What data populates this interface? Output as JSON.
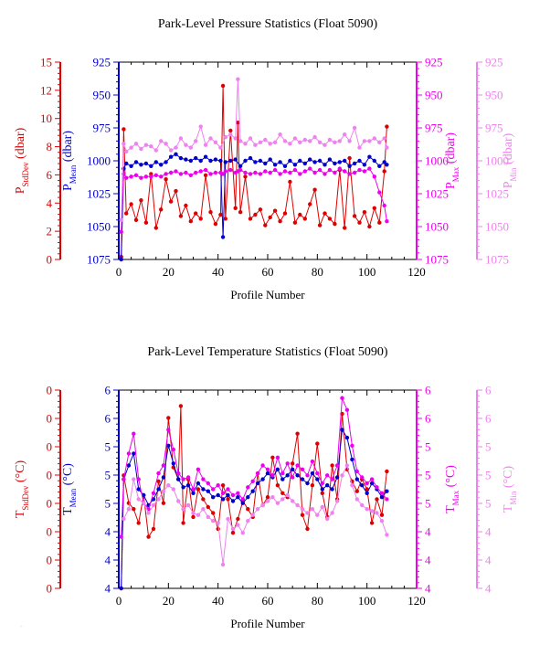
{
  "footer_text": "...",
  "chart_data": [
    {
      "type": "line",
      "title": "Park-Level Pressure Statistics (Float 5090)",
      "xlabel": "Profile Number",
      "xlim": [
        0,
        120
      ],
      "xticks": [
        0,
        20,
        40,
        60,
        80,
        100,
        120
      ],
      "axes": [
        {
          "id": "std",
          "label_main": "P",
          "label_sub": "StdDev",
          "label_unit": " (dbar)",
          "color": "#dd0000",
          "ticks": [
            "15",
            "12",
            "10",
            "8",
            "6",
            "4",
            "2",
            "0"
          ],
          "lim": [
            0,
            15
          ]
        },
        {
          "id": "mean",
          "label_main": "P",
          "label_sub": "Mean",
          "label_unit": " (dbar)",
          "color": "#0000cc",
          "ticks": [
            "925",
            "950",
            "975",
            "1000",
            "1025",
            "1050",
            "1075"
          ],
          "lim": [
            925,
            1075
          ],
          "inverted": true
        },
        {
          "id": "max",
          "label_main": "P",
          "label_sub": "Max",
          "label_unit": " (dbar)",
          "color": "#ee00ee",
          "ticks": [
            "925",
            "950",
            "975",
            "1000",
            "1025",
            "1050",
            "1075"
          ],
          "lim": [
            925,
            1075
          ],
          "inverted": true
        },
        {
          "id": "min",
          "label_main": "P",
          "label_sub": "Min",
          "label_unit": " (dbar)",
          "color": "#ee82ee",
          "ticks": [
            "925",
            "950",
            "975",
            "1000",
            "1025",
            "1050",
            "1075"
          ],
          "lim": [
            925,
            1075
          ],
          "inverted": true
        }
      ],
      "series": [
        {
          "axis": "std",
          "color": "#dd0000",
          "x": [
            1,
            2,
            3,
            5,
            7,
            9,
            11,
            13,
            15,
            17,
            19,
            21,
            23,
            25,
            27,
            29,
            31,
            33,
            35,
            37,
            39,
            41,
            42,
            43,
            45,
            47,
            48,
            49,
            51,
            53,
            55,
            57,
            59,
            61,
            63,
            65,
            67,
            69,
            71,
            73,
            75,
            77,
            79,
            81,
            83,
            85,
            87,
            89,
            91,
            93,
            95,
            97,
            99,
            101,
            103,
            105,
            107,
            108
          ],
          "y": [
            0.2,
            9.9,
            3.5,
            4.2,
            3.0,
            4.5,
            2.8,
            6.5,
            2.4,
            3.8,
            6.1,
            4.4,
            5.2,
            3.3,
            4.1,
            2.9,
            3.5,
            3.1,
            6.4,
            3.6,
            2.7,
            3.4,
            13.2,
            3.1,
            9.8,
            3.9,
            10.4,
            3.6,
            6.3,
            3.1,
            3.4,
            3.8,
            2.6,
            3.2,
            3.7,
            2.9,
            3.5,
            5.9,
            2.8,
            3.4,
            3.1,
            4.2,
            5.3,
            2.6,
            3.5,
            3.1,
            2.7,
            6.8,
            2.4,
            7.7,
            3.3,
            2.8,
            3.6,
            2.5,
            3.9,
            2.8,
            6.7,
            10.1
          ]
        },
        {
          "axis": "mean",
          "color": "#0000cc",
          "x": [
            1,
            2,
            3,
            5,
            7,
            9,
            11,
            13,
            15,
            17,
            19,
            21,
            23,
            25,
            27,
            29,
            31,
            33,
            35,
            37,
            39,
            41,
            42,
            43,
            45,
            47,
            49,
            51,
            53,
            55,
            57,
            59,
            61,
            63,
            65,
            67,
            69,
            71,
            73,
            75,
            77,
            79,
            81,
            83,
            85,
            87,
            89,
            91,
            93,
            95,
            97,
            99,
            101,
            103,
            105,
            107,
            108
          ],
          "y": [
            1075,
            1006,
            1002,
            1004,
            1001,
            1003,
            1002,
            1004,
            1001,
            1003,
            1001,
            997,
            995,
            998,
            999,
            1000,
            998,
            1000,
            997,
            1000,
            999,
            1000,
            1058,
            1001,
            1000,
            999,
            1004,
            1000,
            998,
            1001,
            1000,
            1002,
            999,
            1003,
            1001,
            1004,
            1000,
            1003,
            1000,
            1002,
            999,
            1001,
            1000,
            1003,
            999,
            1002,
            1001,
            1000,
            1004,
            1002,
            1000,
            1003,
            997,
            1000,
            1004,
            1001,
            1003
          ]
        },
        {
          "axis": "max",
          "color": "#ee00ee",
          "x": [
            1,
            2,
            3,
            5,
            7,
            9,
            11,
            13,
            15,
            17,
            19,
            21,
            23,
            25,
            27,
            29,
            31,
            33,
            35,
            37,
            39,
            41,
            42,
            43,
            45,
            47,
            48,
            49,
            51,
            53,
            55,
            57,
            59,
            61,
            63,
            65,
            67,
            69,
            71,
            73,
            75,
            77,
            79,
            81,
            83,
            85,
            87,
            89,
            91,
            93,
            95,
            97,
            99,
            101,
            103,
            105,
            107,
            108
          ],
          "y": [
            1054,
            1010,
            1013,
            1012,
            1011,
            1013,
            1012,
            1012,
            1011,
            1012,
            1010,
            1009,
            1008,
            1010,
            1009,
            1011,
            1009,
            1008,
            1007,
            1010,
            1009,
            1009,
            1010,
            1008,
            1007,
            1009,
            1008,
            1007,
            1009,
            1010,
            1009,
            1010,
            1008,
            1009,
            1007,
            1010,
            1008,
            1009,
            1007,
            1010,
            1008,
            1006,
            1009,
            1007,
            1010,
            1007,
            1009,
            1006,
            1008,
            1010,
            1009,
            1007,
            1008,
            1006,
            1012,
            1024,
            1034,
            1046
          ]
        },
        {
          "axis": "min",
          "color": "#ee82ee",
          "x": [
            1,
            2,
            3,
            5,
            7,
            9,
            11,
            13,
            15,
            17,
            19,
            21,
            23,
            25,
            27,
            29,
            31,
            33,
            35,
            37,
            39,
            41,
            43,
            45,
            47,
            48,
            49,
            51,
            53,
            55,
            57,
            59,
            61,
            63,
            65,
            67,
            69,
            71,
            73,
            75,
            77,
            79,
            81,
            83,
            85,
            87,
            89,
            91,
            93,
            95,
            97,
            99,
            101,
            103,
            105,
            107,
            108
          ],
          "y": [
            1045,
            987,
            993,
            990,
            987,
            991,
            988,
            989,
            992,
            985,
            987,
            992,
            990,
            983,
            988,
            990,
            985,
            974,
            988,
            983,
            986,
            990,
            982,
            980,
            983,
            938,
            985,
            987,
            983,
            988,
            986,
            984,
            987,
            986,
            980,
            985,
            987,
            983,
            986,
            984,
            985,
            982,
            986,
            988,
            984,
            986,
            985,
            980,
            985,
            975,
            990,
            985,
            985,
            983,
            986,
            983,
            990
          ]
        }
      ]
    },
    {
      "type": "line",
      "title": "Park-Level Temperature Statistics (Float 5090)",
      "xlabel": "Profile Number",
      "xlim": [
        0,
        120
      ],
      "xticks": [
        0,
        20,
        40,
        60,
        80,
        100,
        120
      ],
      "axes": [
        {
          "id": "std",
          "label_main": "T",
          "label_sub": "StdDev",
          "label_unit": " (°C)",
          "color": "#dd0000",
          "ticks": [
            "0",
            "0",
            "0",
            "0",
            "0",
            "0",
            "0",
            "0"
          ]
        },
        {
          "id": "mean",
          "label_main": "T",
          "label_sub": "Mean",
          "label_unit": " (°C)",
          "color": "#0000cc",
          "ticks": [
            "6",
            "6",
            "5",
            "5",
            "5",
            "4",
            "4",
            "4"
          ]
        },
        {
          "id": "max",
          "label_main": "T",
          "label_sub": "Max",
          "label_unit": " (°C)",
          "color": "#ee00ee",
          "ticks": [
            "6",
            "6",
            "5",
            "5",
            "5",
            "4",
            "4",
            "4"
          ]
        },
        {
          "id": "min",
          "label_main": "T",
          "label_sub": "Min",
          "label_unit": " (°C)",
          "color": "#ee82ee",
          "ticks": [
            "6",
            "6",
            "5",
            "5",
            "5",
            "4",
            "4",
            "4"
          ]
        }
      ],
      "series": [
        {
          "axis": "std",
          "color": "#dd0000",
          "x": [
            1,
            2,
            4,
            6,
            8,
            10,
            12,
            14,
            16,
            18,
            20,
            22,
            24,
            25,
            26,
            28,
            30,
            32,
            34,
            36,
            38,
            40,
            42,
            44,
            46,
            48,
            50,
            52,
            54,
            56,
            58,
            60,
            62,
            64,
            66,
            68,
            70,
            72,
            74,
            76,
            78,
            80,
            82,
            84,
            86,
            88,
            90,
            92,
            94,
            96,
            98,
            100,
            102,
            104,
            106,
            108
          ],
          "y": [
            0.0,
            0.57,
            0.43,
            0.4,
            0.33,
            0.47,
            0.26,
            0.3,
            0.54,
            0.43,
            0.86,
            0.61,
            0.55,
            0.92,
            0.33,
            0.55,
            0.36,
            0.5,
            0.45,
            0.41,
            0.38,
            0.3,
            0.52,
            0.45,
            0.28,
            0.35,
            0.44,
            0.4,
            0.36,
            0.58,
            0.42,
            0.46,
            0.66,
            0.52,
            0.48,
            0.46,
            0.63,
            0.78,
            0.37,
            0.3,
            0.52,
            0.73,
            0.48,
            0.36,
            0.62,
            0.45,
            0.88,
            0.6,
            0.54,
            0.49,
            0.55,
            0.5,
            0.33,
            0.45,
            0.37,
            0.59
          ]
        },
        {
          "axis": "mean",
          "color": "#0000cc",
          "x": [
            1,
            2,
            4,
            6,
            8,
            10,
            12,
            14,
            16,
            18,
            20,
            22,
            24,
            26,
            28,
            30,
            32,
            34,
            36,
            38,
            40,
            42,
            44,
            46,
            48,
            50,
            52,
            54,
            56,
            58,
            60,
            62,
            64,
            66,
            68,
            70,
            72,
            74,
            76,
            78,
            80,
            82,
            84,
            86,
            88,
            90,
            92,
            94,
            96,
            98,
            100,
            102,
            104,
            106,
            108
          ],
          "y": [
            0.0,
            0.55,
            0.62,
            0.68,
            0.5,
            0.47,
            0.42,
            0.45,
            0.5,
            0.56,
            0.72,
            0.63,
            0.55,
            0.51,
            0.52,
            0.48,
            0.53,
            0.5,
            0.49,
            0.46,
            0.47,
            0.45,
            0.47,
            0.44,
            0.46,
            0.43,
            0.46,
            0.49,
            0.53,
            0.55,
            0.58,
            0.56,
            0.6,
            0.55,
            0.57,
            0.6,
            0.57,
            0.55,
            0.53,
            0.58,
            0.55,
            0.5,
            0.52,
            0.5,
            0.56,
            0.8,
            0.76,
            0.65,
            0.55,
            0.52,
            0.48,
            0.53,
            0.5,
            0.46,
            0.49
          ]
        },
        {
          "axis": "max",
          "color": "#ee00ee",
          "x": [
            1,
            2,
            4,
            6,
            8,
            10,
            12,
            14,
            16,
            18,
            20,
            22,
            24,
            26,
            28,
            30,
            32,
            34,
            36,
            38,
            40,
            42,
            44,
            46,
            48,
            50,
            52,
            54,
            56,
            58,
            60,
            62,
            64,
            66,
            68,
            70,
            72,
            74,
            76,
            78,
            80,
            82,
            84,
            86,
            88,
            90,
            92,
            94,
            96,
            98,
            100,
            102,
            104,
            106,
            108
          ],
          "y": [
            0.26,
            0.55,
            0.68,
            0.78,
            0.55,
            0.43,
            0.4,
            0.48,
            0.58,
            0.62,
            0.8,
            0.7,
            0.58,
            0.55,
            0.56,
            0.5,
            0.6,
            0.55,
            0.53,
            0.5,
            0.52,
            0.48,
            0.5,
            0.47,
            0.48,
            0.45,
            0.51,
            0.54,
            0.58,
            0.62,
            0.6,
            0.57,
            0.66,
            0.58,
            0.63,
            0.56,
            0.62,
            0.6,
            0.57,
            0.64,
            0.58,
            0.53,
            0.57,
            0.55,
            0.62,
            0.96,
            0.9,
            0.72,
            0.59,
            0.56,
            0.53,
            0.55,
            0.51,
            0.48,
            0.45
          ]
        },
        {
          "axis": "min",
          "color": "#ee82ee",
          "x": [
            2,
            4,
            6,
            8,
            10,
            12,
            14,
            16,
            18,
            20,
            22,
            24,
            26,
            28,
            30,
            32,
            34,
            36,
            38,
            40,
            42,
            44,
            46,
            48,
            50,
            52,
            54,
            56,
            58,
            60,
            62,
            64,
            66,
            68,
            70,
            72,
            74,
            76,
            78,
            80,
            82,
            84,
            86,
            88,
            90,
            92,
            94,
            96,
            98,
            100,
            102,
            104,
            106,
            108
          ],
          "y": [
            0.35,
            0.4,
            0.55,
            0.45,
            0.43,
            0.38,
            0.42,
            0.45,
            0.49,
            0.52,
            0.5,
            0.44,
            0.4,
            0.42,
            0.38,
            0.37,
            0.4,
            0.36,
            0.34,
            0.33,
            0.12,
            0.35,
            0.3,
            0.32,
            0.28,
            0.34,
            0.37,
            0.4,
            0.42,
            0.44,
            0.46,
            0.43,
            0.45,
            0.47,
            0.44,
            0.42,
            0.4,
            0.38,
            0.4,
            0.37,
            0.41,
            0.35,
            0.38,
            0.44,
            0.57,
            0.62,
            0.52,
            0.45,
            0.42,
            0.4,
            0.39,
            0.38,
            0.34,
            0.27
          ]
        }
      ]
    }
  ]
}
